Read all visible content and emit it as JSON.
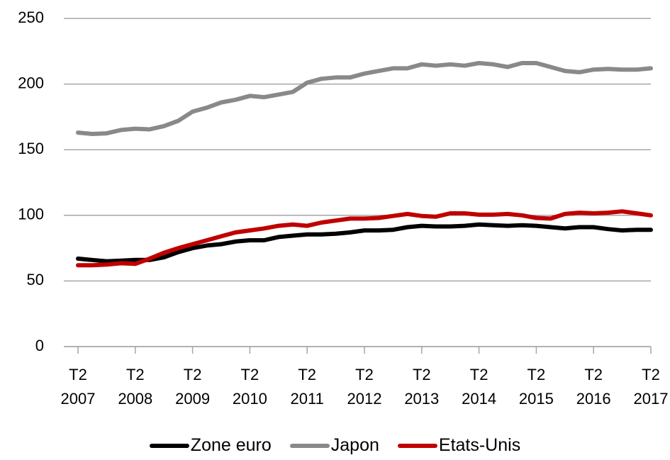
{
  "chart_data": {
    "type": "line",
    "categories": [
      "T2\n2007",
      null,
      null,
      null,
      "T2\n2008",
      null,
      null,
      null,
      "T2\n2009",
      null,
      null,
      null,
      "T2\n2010",
      null,
      null,
      null,
      "T2\n2011",
      null,
      null,
      null,
      "T2\n2012",
      null,
      null,
      null,
      "T2\n2013",
      null,
      null,
      null,
      "T2\n2014",
      null,
      null,
      null,
      "T2\n2015",
      null,
      null,
      null,
      "T2\n2016",
      null,
      null,
      null,
      "T2\n2017"
    ],
    "series": [
      {
        "name": "Zone euro",
        "color": "#000000",
        "values": [
          67,
          66,
          65,
          65.5,
          66,
          66,
          68,
          72,
          75,
          77,
          78,
          80,
          81,
          81,
          83.5,
          84.5,
          85.5,
          85.5,
          86,
          87,
          88.5,
          88.5,
          89,
          91,
          92,
          91.5,
          91.5,
          92,
          93,
          92.5,
          92,
          92.5,
          92,
          91,
          90,
          91,
          91,
          89.5,
          88.5,
          89,
          89
        ]
      },
      {
        "name": "Japon",
        "color": "#898989",
        "values": [
          163,
          162,
          162.5,
          165,
          166,
          165.5,
          168,
          172,
          179,
          182,
          186,
          188,
          191,
          190,
          192,
          194,
          201,
          204,
          205,
          205,
          208,
          210,
          212,
          212,
          215,
          214,
          215,
          214,
          216,
          215,
          213,
          216,
          216,
          213,
          210,
          209,
          211,
          211.5,
          211,
          211,
          212
        ]
      },
      {
        "name": "Etats-Unis",
        "color": "#c00000",
        "values": [
          62,
          62,
          62.5,
          63.5,
          63,
          67,
          71.5,
          75,
          78,
          81,
          84,
          87,
          88.5,
          90,
          92,
          93,
          92,
          94.5,
          96,
          97.5,
          97.5,
          98,
          99.5,
          101,
          99.5,
          99,
          101.5,
          101.5,
          100.5,
          100.5,
          101,
          100,
          98,
          97.5,
          101,
          102,
          101.5,
          102,
          103,
          101.5,
          100
        ]
      }
    ],
    "ylim": [
      0,
      250
    ],
    "yticks": [
      0,
      50,
      100,
      150,
      200,
      250
    ],
    "grid": true,
    "legend": "bottom"
  }
}
